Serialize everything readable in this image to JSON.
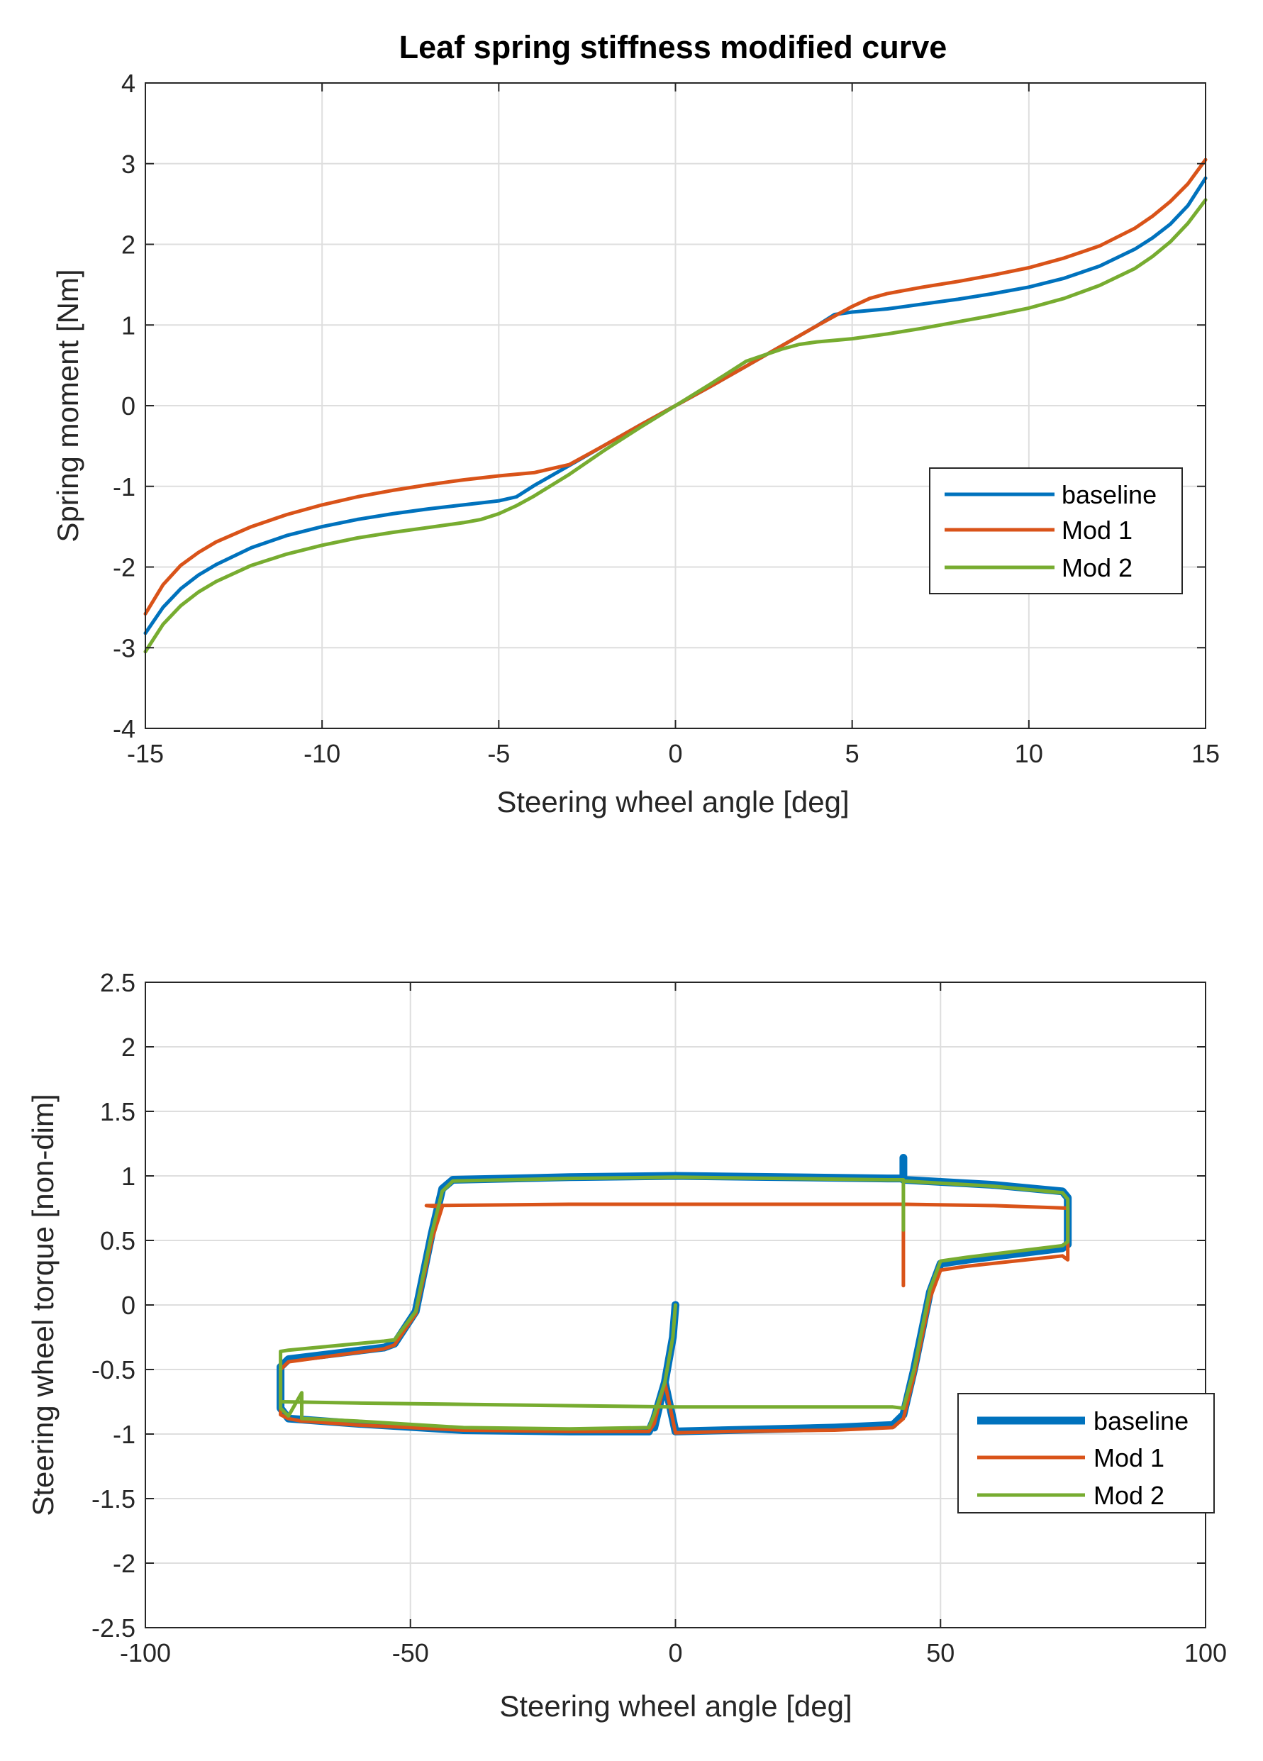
{
  "chart_data": [
    {
      "type": "line",
      "title": "Leaf spring stiffness modified curve",
      "xlabel": "Steering wheel angle [deg]",
      "ylabel": "Spring moment [Nm]",
      "xlim": [
        -15,
        15
      ],
      "ylim": [
        -4,
        4
      ],
      "xticks": [
        -15,
        -10,
        -5,
        0,
        5,
        10,
        15
      ],
      "yticks": [
        -4,
        -3,
        -2,
        -1,
        0,
        1,
        2,
        3,
        4
      ],
      "xtick_labels": [
        "-15",
        "-10",
        "-5",
        "0",
        "5",
        "10",
        "15"
      ],
      "ytick_labels": [
        "-4",
        "-3",
        "-2",
        "-1",
        "0",
        "1",
        "2",
        "3",
        "4"
      ],
      "grid": true,
      "legend_position": "right",
      "series": [
        {
          "name": "baseline",
          "color": "#0072BD",
          "x": [
            -15,
            -14.5,
            -14,
            -13.5,
            -13,
            -12,
            -11,
            -10,
            -9,
            -8,
            -7,
            -6,
            -5,
            -4.5,
            -4,
            -3,
            -2,
            -1,
            0,
            1,
            2,
            3,
            4,
            4.5,
            5,
            6,
            7,
            8,
            9,
            10,
            11,
            12,
            13,
            13.5,
            14,
            14.5,
            15
          ],
          "y": [
            -2.82,
            -2.5,
            -2.27,
            -2.1,
            -1.97,
            -1.76,
            -1.61,
            -1.5,
            -1.41,
            -1.34,
            -1.28,
            -1.23,
            -1.18,
            -1.13,
            -0.99,
            -0.74,
            -0.49,
            -0.24,
            0,
            0.24,
            0.49,
            0.74,
            0.99,
            1.13,
            1.16,
            1.2,
            1.26,
            1.32,
            1.39,
            1.47,
            1.58,
            1.73,
            1.94,
            2.08,
            2.25,
            2.48,
            2.82
          ]
        },
        {
          "name": "Mod 1",
          "color": "#D95319",
          "x": [
            -15,
            -14.5,
            -14,
            -13.5,
            -13,
            -12,
            -11,
            -10,
            -9,
            -8,
            -7,
            -6,
            -5,
            -4,
            -3.5,
            -3,
            -2,
            -1,
            0,
            1,
            2,
            3,
            4,
            4.5,
            5,
            5.5,
            6,
            7,
            8,
            9,
            10,
            11,
            12,
            13,
            13.5,
            14,
            14.5,
            15
          ],
          "y": [
            -2.58,
            -2.22,
            -1.98,
            -1.82,
            -1.69,
            -1.5,
            -1.35,
            -1.23,
            -1.13,
            -1.05,
            -0.98,
            -0.92,
            -0.87,
            -0.83,
            -0.78,
            -0.73,
            -0.49,
            -0.24,
            0,
            0.24,
            0.49,
            0.74,
            0.99,
            1.11,
            1.23,
            1.33,
            1.39,
            1.47,
            1.54,
            1.62,
            1.71,
            1.83,
            1.98,
            2.2,
            2.35,
            2.53,
            2.75,
            3.05
          ]
        },
        {
          "name": "Mod 2",
          "color": "#77AC30",
          "x": [
            -15,
            -14.5,
            -14,
            -13.5,
            -13,
            -12,
            -11,
            -10,
            -9,
            -8,
            -7,
            -6,
            -5.5,
            -5,
            -4.5,
            -4,
            -3,
            -2,
            -1,
            0,
            1,
            2,
            3,
            3.5,
            4,
            4.5,
            5,
            6,
            7,
            8,
            9,
            10,
            11,
            12,
            13,
            13.5,
            14,
            14.5,
            15
          ],
          "y": [
            -3.05,
            -2.71,
            -2.48,
            -2.31,
            -2.18,
            -1.98,
            -1.84,
            -1.73,
            -1.64,
            -1.57,
            -1.51,
            -1.45,
            -1.41,
            -1.34,
            -1.24,
            -1.12,
            -0.85,
            -0.55,
            -0.27,
            0,
            0.27,
            0.55,
            0.7,
            0.76,
            0.79,
            0.81,
            0.83,
            0.89,
            0.96,
            1.04,
            1.12,
            1.21,
            1.33,
            1.49,
            1.7,
            1.85,
            2.03,
            2.26,
            2.55
          ]
        }
      ]
    },
    {
      "type": "line",
      "title": "",
      "xlabel": "Steering wheel angle [deg]",
      "ylabel": "Steering wheel torque [non-dim]",
      "xlim": [
        -100,
        100
      ],
      "ylim": [
        -2.5,
        2.5
      ],
      "xticks": [
        -100,
        -50,
        0,
        50,
        100
      ],
      "yticks": [
        -2.5,
        -2,
        -1.5,
        -1,
        -0.5,
        0,
        0.5,
        1,
        1.5,
        2,
        2.5
      ],
      "xtick_labels": [
        "-100",
        "-50",
        "0",
        "50",
        "100"
      ],
      "ytick_labels": [
        "-2.5",
        "-2",
        "-1.5",
        "-1",
        "-0.5",
        "0",
        "0.5",
        "1",
        "1.5",
        "2",
        "2.5"
      ],
      "grid": true,
      "legend_position": "bottom-right",
      "series": [
        {
          "name": "baseline",
          "color": "#0072BD",
          "x": [
            0,
            -0.5,
            -2,
            -4,
            -5,
            -20,
            -40,
            -60,
            -73,
            -74.5,
            -74.5,
            -73,
            -55,
            -53,
            -49,
            -46,
            -44,
            -42,
            -20,
            0,
            20,
            40,
            43,
            43,
            43,
            43,
            60,
            73,
            74,
            74,
            73,
            55,
            50,
            48,
            45,
            43,
            41,
            30,
            10,
            0,
            -2,
            -4
          ],
          "y": [
            0,
            -0.25,
            -0.6,
            -0.88,
            -0.98,
            -0.98,
            -0.97,
            -0.92,
            -0.88,
            -0.8,
            -0.48,
            -0.42,
            -0.33,
            -0.3,
            -0.05,
            0.55,
            0.9,
            0.97,
            0.99,
            1.0,
            0.99,
            0.98,
            0.98,
            1.14,
            0.98,
            0.97,
            0.93,
            0.88,
            0.83,
            0.47,
            0.44,
            0.35,
            0.32,
            0.1,
            -0.5,
            -0.85,
            -0.93,
            -0.95,
            -0.97,
            -0.98,
            -0.6,
            -0.95
          ]
        },
        {
          "name": "Mod 1",
          "color": "#D95319",
          "x": [
            -47,
            -20,
            0,
            20,
            40,
            43,
            43,
            43,
            60,
            74,
            74,
            73,
            55,
            50,
            48,
            45,
            43,
            41,
            30,
            10,
            0,
            -2,
            -4,
            -5,
            -20,
            -40,
            -60,
            -70,
            -70.5,
            -70.5,
            -70.5,
            -73,
            -74.5,
            -74.5,
            -73,
            -55,
            -53,
            -49,
            -46,
            -44,
            -47
          ],
          "y": [
            0.77,
            0.78,
            0.78,
            0.78,
            0.78,
            0.78,
            0.15,
            0.78,
            0.77,
            0.75,
            0.35,
            0.38,
            0.3,
            0.27,
            0.05,
            -0.55,
            -0.88,
            -0.95,
            -0.97,
            -0.98,
            -0.99,
            -0.6,
            -0.92,
            -0.98,
            -0.98,
            -0.97,
            -0.93,
            -0.9,
            -0.9,
            -0.72,
            -0.9,
            -0.88,
            -0.85,
            -0.5,
            -0.44,
            -0.34,
            -0.31,
            -0.07,
            0.5,
            0.76,
            0.77
          ]
        },
        {
          "name": "Mod 2",
          "color": "#77AC30",
          "x": [
            0,
            -0.5,
            -2,
            -4,
            -5,
            -20,
            -40,
            -60,
            -70,
            -70.5,
            -70.5,
            -73,
            -74.5,
            -74.5,
            -73,
            -55,
            -53,
            -49,
            -46,
            -44,
            -42,
            -20,
            0,
            20,
            40,
            43,
            43,
            43,
            43,
            60,
            73,
            74,
            74,
            73,
            55,
            50,
            48,
            45,
            43,
            41,
            30,
            10,
            0,
            -20,
            -40,
            -60,
            -74,
            -74
          ],
          "y": [
            0,
            -0.25,
            -0.6,
            -0.85,
            -0.95,
            -0.96,
            -0.95,
            -0.9,
            -0.88,
            -0.88,
            -0.68,
            -0.86,
            -0.8,
            -0.36,
            -0.35,
            -0.28,
            -0.27,
            -0.05,
            0.55,
            0.88,
            0.96,
            0.98,
            0.99,
            0.98,
            0.97,
            0.97,
            0.58,
            0.97,
            0.96,
            0.92,
            0.87,
            0.82,
            0.49,
            0.46,
            0.37,
            0.34,
            0.12,
            -0.5,
            -0.8,
            -0.79,
            -0.79,
            -0.79,
            -0.79,
            -0.78,
            -0.77,
            -0.76,
            -0.75,
            -0.75
          ]
        }
      ]
    }
  ]
}
